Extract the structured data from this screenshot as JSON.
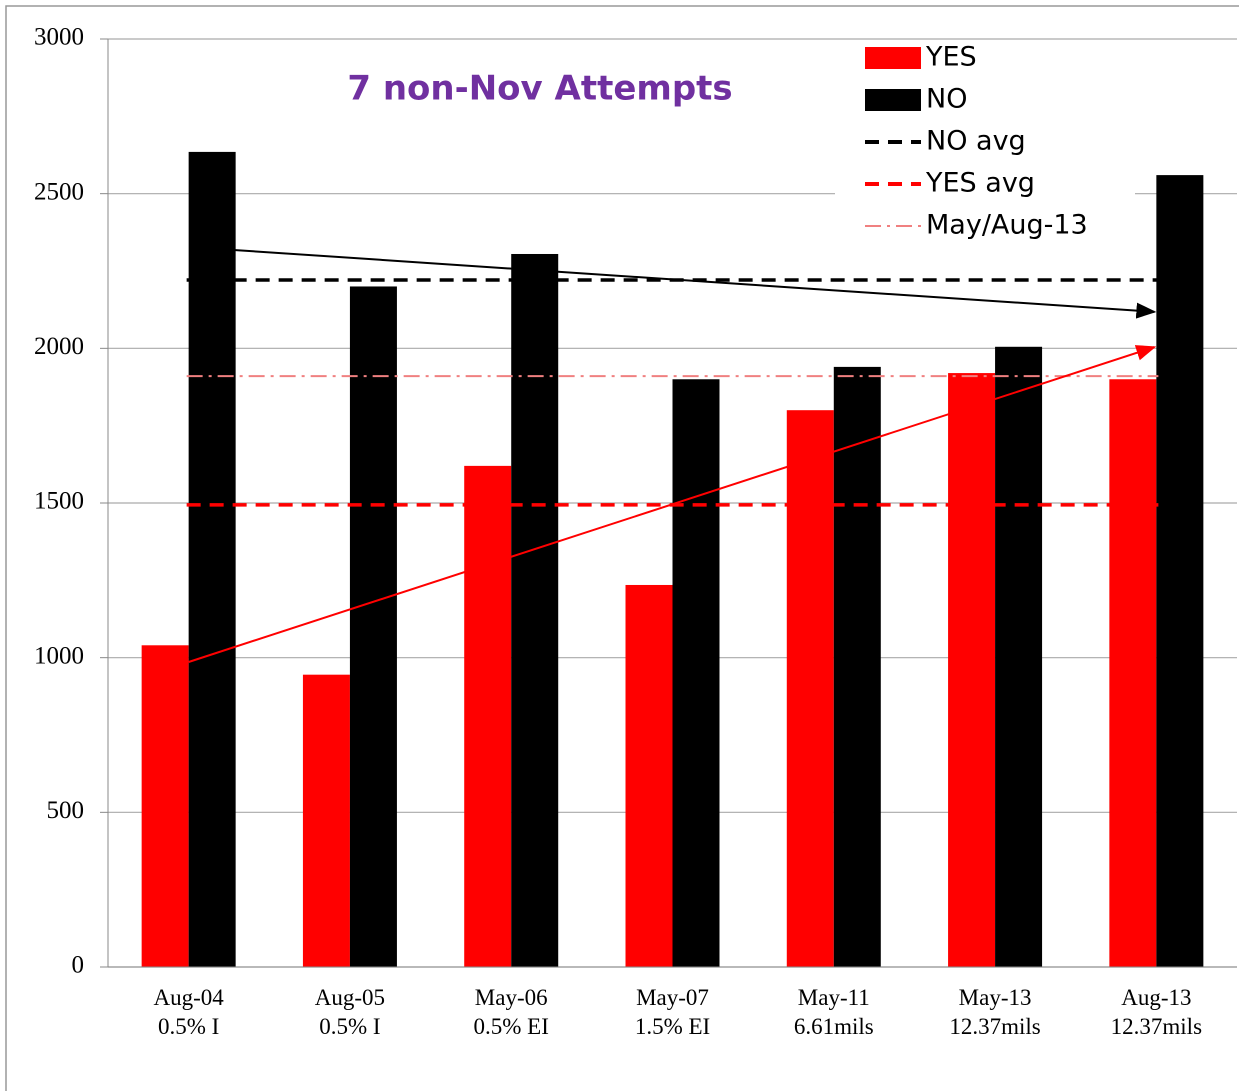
{
  "chart_data": {
    "type": "bar",
    "title": "7 non-Nov Attempts",
    "categories": [
      [
        "Aug-04",
        "0.5% I"
      ],
      [
        "Aug-05",
        "0.5% I"
      ],
      [
        "May-06",
        "0.5% EI"
      ],
      [
        "May-07",
        "1.5% EI"
      ],
      [
        "May-11",
        "6.61mils"
      ],
      [
        "May-13",
        "12.37mils"
      ],
      [
        "Aug-13",
        "12.37mils"
      ]
    ],
    "series": [
      {
        "name": "YES",
        "color": "#ff0000",
        "values": [
          1040,
          945,
          1620,
          1235,
          1800,
          1920,
          1900
        ]
      },
      {
        "name": "NO",
        "color": "#000000",
        "values": [
          2635,
          2200,
          2305,
          1900,
          1940,
          2005,
          2560
        ]
      }
    ],
    "reference_lines": [
      {
        "name": "NO avg",
        "color": "#000000",
        "dash": "dashed",
        "value": 2221
      },
      {
        "name": "YES avg",
        "color": "#ff0000",
        "dash": "dashed",
        "value": 1494
      },
      {
        "name": "May/Aug-13",
        "color": "#f08080",
        "dash": "dashdot",
        "value": 1910
      }
    ],
    "trend_arrows": [
      {
        "color": "#000000",
        "values": [
          2318,
          2118
        ]
      },
      {
        "color": "#ff0000",
        "values": [
          986,
          2004
        ]
      }
    ],
    "ylim": [
      0,
      3000
    ],
    "yticks": [
      0,
      500,
      1000,
      1500,
      2000,
      2500,
      3000
    ],
    "grid": true
  }
}
